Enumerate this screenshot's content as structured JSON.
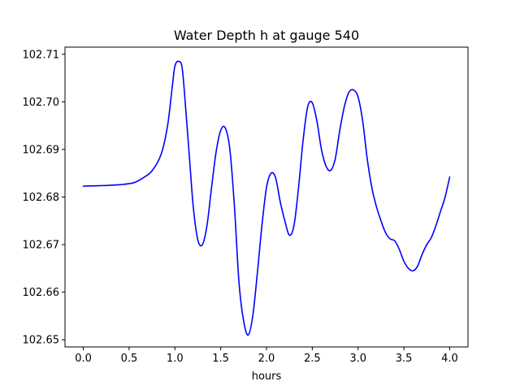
{
  "chart_data": {
    "type": "line",
    "title": "Water Depth h at gauge 540",
    "xlabel": "hours",
    "ylabel": "",
    "xlim": [
      -0.2,
      4.2
    ],
    "ylim": [
      102.6485,
      102.7115
    ],
    "grid": false,
    "legend": "none",
    "xticks": [
      0.0,
      0.5,
      1.0,
      1.5,
      2.0,
      2.5,
      3.0,
      3.5,
      4.0
    ],
    "xtick_labels": [
      "0.0",
      "0.5",
      "1.0",
      "1.5",
      "2.0",
      "2.5",
      "3.0",
      "3.5",
      "4.0"
    ],
    "yticks": [
      102.65,
      102.66,
      102.67,
      102.68,
      102.69,
      102.7,
      102.71
    ],
    "ytick_labels": [
      "102.65",
      "102.66",
      "102.67",
      "102.68",
      "102.69",
      "102.70",
      "102.71"
    ],
    "series": [
      {
        "color": "#0000ff",
        "x": [
          0.0,
          0.2,
          0.4,
          0.55,
          0.65,
          0.75,
          0.85,
          0.92,
          0.97,
          1.0,
          1.04,
          1.08,
          1.12,
          1.16,
          1.2,
          1.25,
          1.3,
          1.35,
          1.4,
          1.45,
          1.5,
          1.55,
          1.6,
          1.65,
          1.7,
          1.75,
          1.8,
          1.85,
          1.9,
          1.95,
          2.0,
          2.05,
          2.1,
          2.15,
          2.2,
          2.25,
          2.3,
          2.35,
          2.4,
          2.45,
          2.5,
          2.55,
          2.6,
          2.65,
          2.7,
          2.75,
          2.8,
          2.85,
          2.9,
          2.95,
          3.0,
          3.05,
          3.1,
          3.15,
          3.2,
          3.25,
          3.3,
          3.35,
          3.4,
          3.45,
          3.5,
          3.55,
          3.6,
          3.65,
          3.7,
          3.75,
          3.8,
          3.85,
          3.9,
          3.95,
          4.0
        ],
        "y": [
          102.6823,
          102.6824,
          102.6826,
          102.683,
          102.684,
          102.6855,
          102.689,
          102.695,
          102.703,
          102.7075,
          102.7085,
          102.707,
          102.698,
          102.688,
          102.678,
          102.671,
          102.67,
          102.674,
          102.682,
          102.6895,
          102.694,
          102.6945,
          102.69,
          102.678,
          102.662,
          102.654,
          102.651,
          102.655,
          102.664,
          102.674,
          102.682,
          102.685,
          102.684,
          102.679,
          102.675,
          102.672,
          102.674,
          102.682,
          102.692,
          102.699,
          102.6998,
          102.696,
          102.69,
          102.6865,
          102.6856,
          102.688,
          102.694,
          102.699,
          102.702,
          102.7025,
          102.701,
          102.696,
          102.688,
          102.682,
          102.678,
          102.675,
          102.6725,
          102.6712,
          102.6708,
          102.669,
          102.6665,
          102.665,
          102.6645,
          102.6655,
          102.668,
          102.67,
          102.6715,
          102.674,
          102.677,
          102.68,
          102.6842
        ]
      }
    ]
  }
}
